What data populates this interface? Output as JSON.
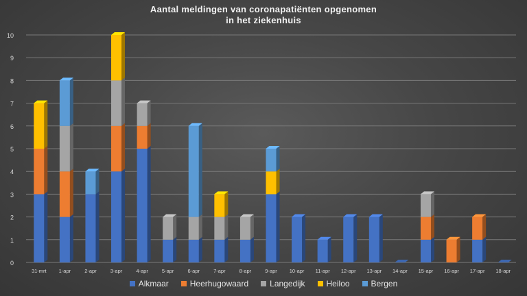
{
  "chart_data": {
    "type": "bar",
    "stacked": true,
    "title_line1": "Aantal meldingen van coronapatiënten opgenomen",
    "title_line2": "in het ziekenhuis",
    "categories": [
      "31-mrt",
      "1-apr",
      "2-apr",
      "3-apr",
      "4-apr",
      "5-apr",
      "6-apr",
      "7-apr",
      "8-apr",
      "9-apr",
      "10-apr",
      "11-apr",
      "12-apr",
      "13-apr",
      "14-apr",
      "15-apr",
      "16-apr",
      "17-apr",
      "18-apr"
    ],
    "ylim": [
      0,
      10
    ],
    "yticks": [
      "0",
      "1",
      "2",
      "3",
      "4",
      "5",
      "6",
      "7",
      "8",
      "9",
      "10"
    ],
    "grid": true,
    "legend_position": "bottom",
    "series": [
      {
        "name": "Alkmaar",
        "color": "#4472c4",
        "values": [
          3,
          2,
          3,
          4,
          5,
          1,
          1,
          1,
          1,
          3,
          2,
          1,
          2,
          2,
          0,
          1,
          0,
          1,
          0
        ]
      },
      {
        "name": "Heerhugowaard",
        "color": "#ed7d31",
        "values": [
          2,
          2,
          0,
          2,
          1,
          0,
          0,
          0,
          0,
          0,
          0,
          0,
          0,
          0,
          0,
          1,
          1,
          1,
          0
        ]
      },
      {
        "name": "Langedijk",
        "color": "#a5a5a5",
        "values": [
          0,
          2,
          0,
          2,
          1,
          1,
          1,
          1,
          1,
          0,
          0,
          0,
          0,
          0,
          0,
          1,
          0,
          0,
          0
        ]
      },
      {
        "name": "Heiloo",
        "color": "#ffc000",
        "values": [
          2,
          0,
          0,
          2,
          0,
          0,
          0,
          1,
          0,
          1,
          0,
          0,
          0,
          0,
          0,
          0,
          0,
          0,
          0
        ]
      },
      {
        "name": "Bergen",
        "color": "#5b9bd5",
        "values": [
          0,
          2,
          1,
          0,
          0,
          0,
          4,
          0,
          0,
          1,
          0,
          0,
          0,
          0,
          0,
          0,
          0,
          0,
          0
        ]
      }
    ]
  }
}
